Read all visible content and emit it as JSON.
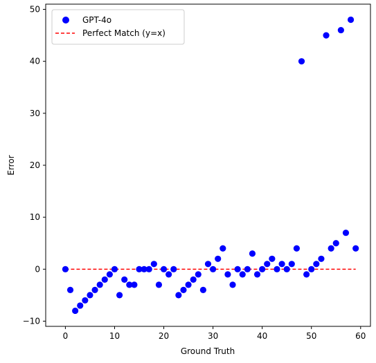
{
  "chart_data": {
    "type": "scatter",
    "title": "",
    "xlabel": "Ground Truth",
    "ylabel": "Error",
    "xlim": [
      -4,
      62
    ],
    "ylim": [
      -11,
      51
    ],
    "x_ticks": [
      0,
      10,
      20,
      30,
      40,
      50,
      60
    ],
    "y_ticks": [
      -10,
      0,
      10,
      20,
      30,
      40,
      50
    ],
    "x_tick_labels": [
      "0",
      "10",
      "20",
      "30",
      "40",
      "50",
      "60"
    ],
    "y_tick_labels": [
      "−10",
      "0",
      "10",
      "20",
      "30",
      "40",
      "50"
    ],
    "grid": false,
    "legend_position": "top-left",
    "series": [
      {
        "name": "GPT-4o",
        "kind": "scatter",
        "color": "#0000ff",
        "x": [
          0,
          1,
          2,
          3,
          4,
          5,
          6,
          7,
          8,
          9,
          10,
          11,
          12,
          13,
          14,
          15,
          16,
          17,
          18,
          19,
          20,
          21,
          22,
          23,
          24,
          25,
          26,
          27,
          28,
          29,
          30,
          31,
          32,
          33,
          34,
          35,
          36,
          37,
          38,
          39,
          40,
          41,
          42,
          43,
          44,
          45,
          46,
          47,
          48,
          49,
          50,
          51,
          52,
          53,
          54,
          55,
          56,
          57,
          58,
          59
        ],
        "y": [
          0,
          -4,
          -8,
          -7,
          -6,
          -5,
          -4,
          -3,
          -2,
          -1,
          0,
          -5,
          -2,
          -3,
          -3,
          0,
          0,
          0,
          1,
          -3,
          0,
          -1,
          0,
          -5,
          -4,
          -3,
          -2,
          -1,
          -4,
          1,
          0,
          2,
          4,
          -1,
          -3,
          0,
          -1,
          0,
          3,
          -1,
          0,
          1,
          2,
          0,
          1,
          0,
          1,
          4,
          40,
          -1,
          0,
          1,
          2,
          45,
          4,
          5,
          46,
          7,
          48,
          4
        ]
      },
      {
        "name": "Perfect Match (y=x)",
        "kind": "line",
        "style": "dashed",
        "color": "#ff0000",
        "x": [
          0,
          59
        ],
        "y": [
          0,
          0
        ]
      }
    ]
  }
}
